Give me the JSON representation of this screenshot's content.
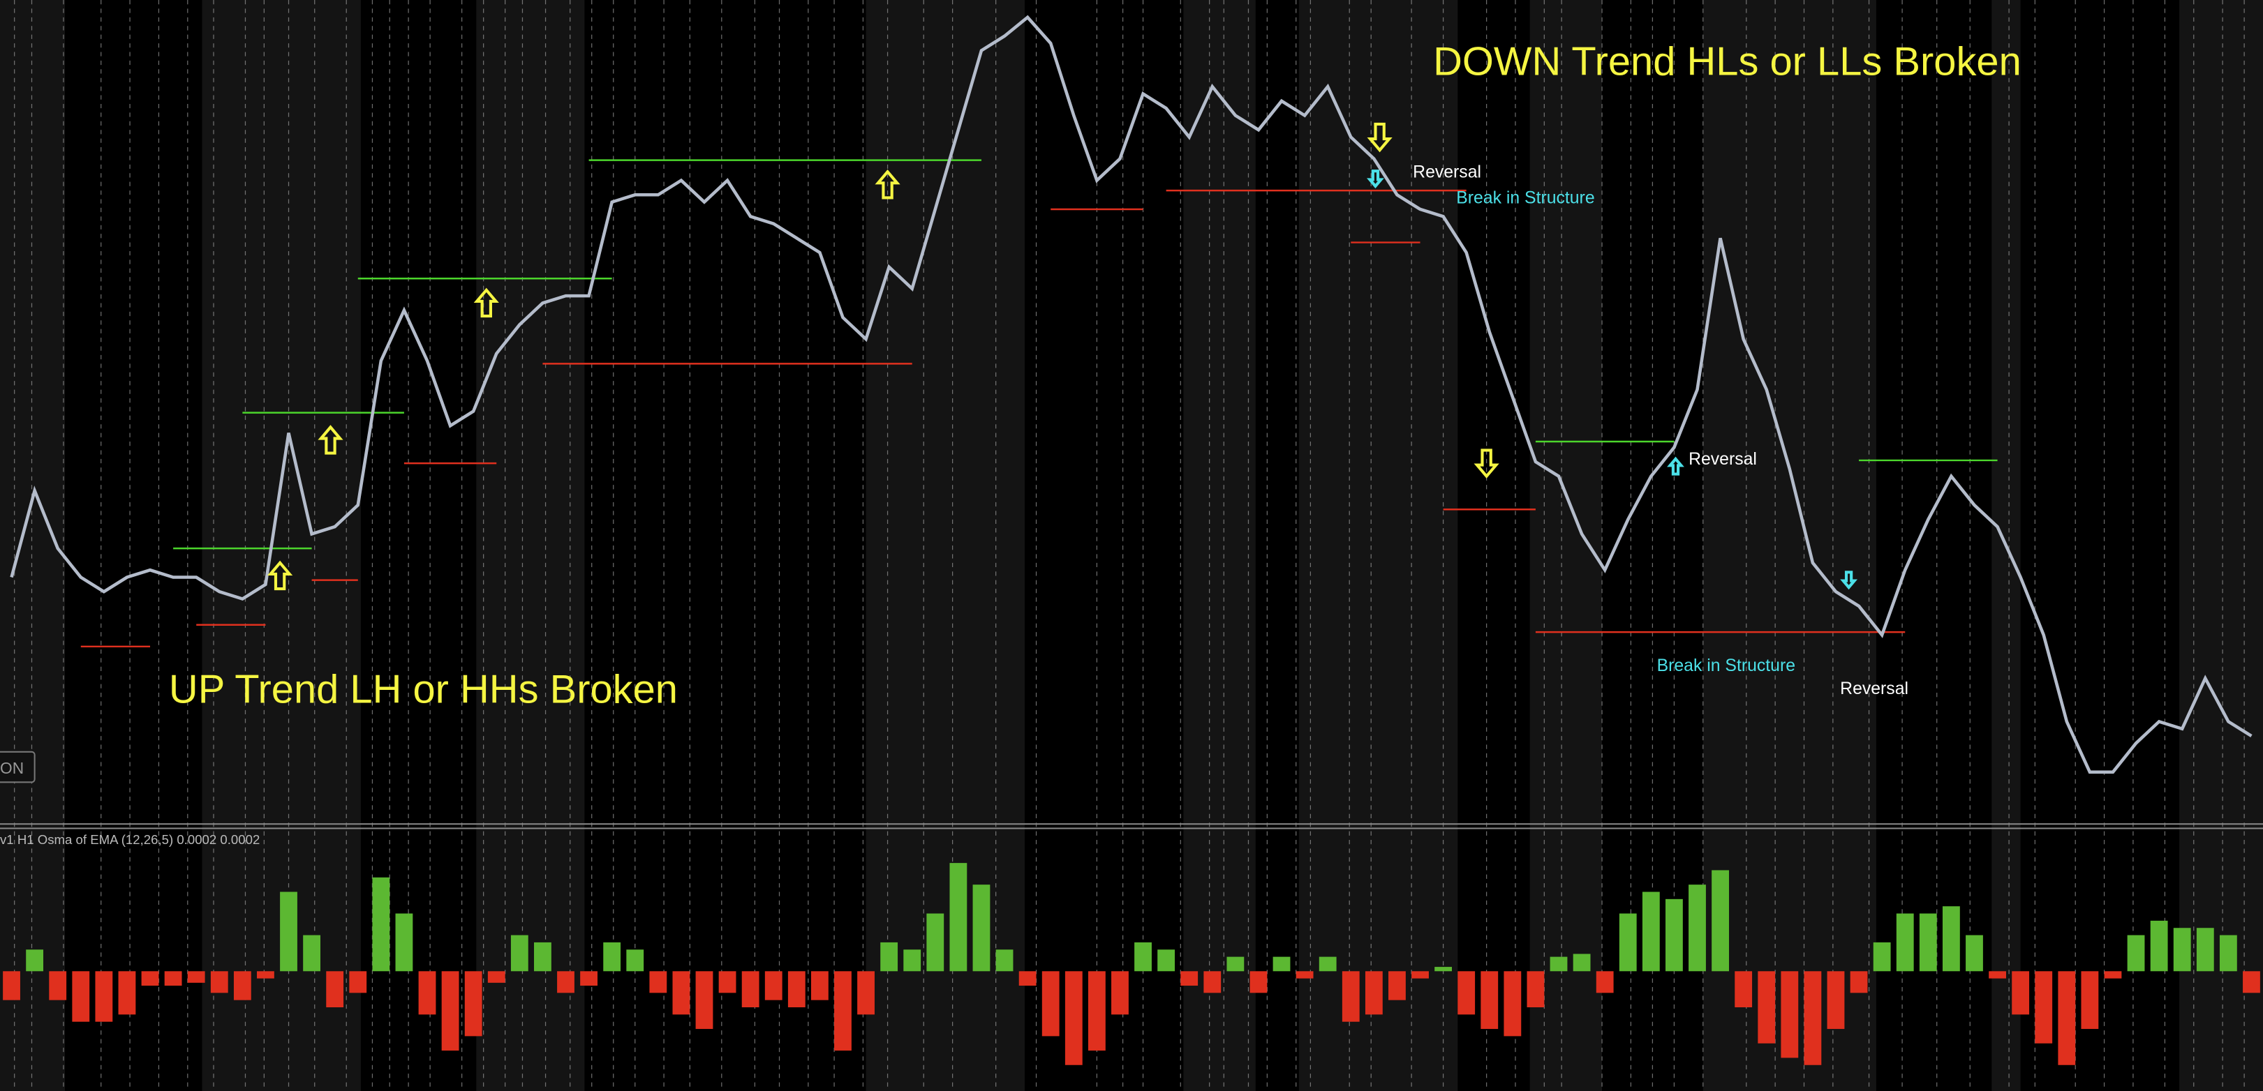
{
  "chart_data": [
    {
      "type": "line",
      "color": "#b4bccb",
      "ylim": [
        0,
        570
      ],
      "values": [
        170,
        230,
        190,
        170,
        160,
        170,
        175,
        170,
        170,
        160,
        155,
        165,
        270,
        200,
        205,
        220,
        320,
        355,
        320,
        275,
        285,
        325,
        345,
        360,
        365,
        365,
        430,
        435,
        435,
        445,
        430,
        445,
        420,
        415,
        405,
        395,
        350,
        335,
        385,
        370,
        425,
        480,
        535,
        545,
        558,
        540,
        490,
        445,
        460,
        505,
        495,
        475,
        510,
        490,
        480,
        500,
        490,
        510,
        475,
        460,
        435,
        425,
        420,
        395,
        340,
        295,
        250,
        240,
        200,
        175,
        210,
        240,
        260,
        300,
        405,
        335,
        300,
        245,
        180,
        160,
        150,
        130,
        175,
        210,
        240,
        220,
        205,
        170,
        130,
        70,
        35,
        35,
        55,
        70,
        65,
        100,
        70,
        60
      ],
      "levels": [
        {
          "value": 190,
          "x": [
            7,
            13
          ],
          "color": "#4cd62c"
        },
        {
          "value": 122,
          "x": [
            3,
            6
          ],
          "color": "#e0301e"
        },
        {
          "value": 137,
          "x": [
            8,
            11
          ],
          "color": "#e0301e"
        },
        {
          "value": 168,
          "x": [
            13,
            15
          ],
          "color": "#e0301e"
        },
        {
          "value": 284,
          "x": [
            10,
            17
          ],
          "color": "#4cd62c"
        },
        {
          "value": 249,
          "x": [
            17,
            21
          ],
          "color": "#e0301e"
        },
        {
          "value": 377,
          "x": [
            15,
            26
          ],
          "color": "#4cd62c"
        },
        {
          "value": 318,
          "x": [
            23,
            39
          ],
          "color": "#e0301e"
        },
        {
          "value": 459,
          "x": [
            25,
            42
          ],
          "color": "#4cd62c"
        },
        {
          "value": 425,
          "x": [
            45,
            49
          ],
          "color": "#e0301e"
        },
        {
          "value": 438,
          "x": [
            50,
            63
          ],
          "color": "#e0301e"
        },
        {
          "value": 402,
          "x": [
            58,
            61
          ],
          "color": "#e0301e"
        },
        {
          "value": 264,
          "x": [
            66,
            72
          ],
          "color": "#4cd62c"
        },
        {
          "value": 217,
          "x": [
            62,
            66
          ],
          "color": "#e0301e"
        },
        {
          "value": 132,
          "x": [
            66,
            82
          ],
          "color": "#e0301e"
        },
        {
          "value": 251,
          "x": [
            80,
            86
          ],
          "color": "#4cd62c"
        }
      ],
      "annotations": [
        "DOWN Trend HLs or LLs Broken",
        "UP Trend LH or HHs Broken",
        "Reversal",
        "Break in Structure",
        "Reversal",
        "Break in Structure",
        "Reversal"
      ]
    },
    {
      "type": "bar",
      "title": "v1 H1 Osma of EMA (12,26,5) 0.0002 0.0002",
      "up_color": "#5cb832",
      "down_color": "#e0301e",
      "ylim": [
        -0.00083,
        0.00098
      ],
      "values": [
        -0.0002,
        0.00015,
        -0.0002,
        -0.00035,
        -0.00035,
        -0.0003,
        -0.0001,
        -0.0001,
        -8e-05,
        -0.00015,
        -0.0002,
        -5e-05,
        0.00055,
        0.00025,
        -0.00025,
        -0.00015,
        0.00065,
        0.0004,
        -0.0003,
        -0.00055,
        -0.00045,
        -8e-05,
        0.00025,
        0.0002,
        -0.00015,
        -0.0001,
        0.0002,
        0.00015,
        -0.00015,
        -0.0003,
        -0.0004,
        -0.00015,
        -0.00025,
        -0.0002,
        -0.00025,
        -0.0002,
        -0.00055,
        -0.0003,
        0.0002,
        0.00015,
        0.0004,
        0.00075,
        0.0006,
        0.00015,
        -0.0001,
        -0.00045,
        -0.00065,
        -0.00055,
        -0.0003,
        0.0002,
        0.00015,
        -0.0001,
        -0.00015,
        0.0001,
        -0.00015,
        0.0001,
        -5e-05,
        0.0001,
        -0.00035,
        -0.0003,
        -0.0002,
        -5e-05,
        3e-05,
        -0.0003,
        -0.0004,
        -0.00045,
        -0.00025,
        0.0001,
        0.00012,
        -0.00015,
        0.0004,
        0.00055,
        0.0005,
        0.0006,
        0.0007,
        -0.00025,
        -0.0005,
        -0.0006,
        -0.00065,
        -0.0004,
        -0.00015,
        0.0002,
        0.0004,
        0.0004,
        0.00045,
        0.00025,
        -5e-05,
        -0.0003,
        -0.0005,
        -0.00065,
        -0.0004,
        -5e-05,
        0.00025,
        0.00035,
        0.0003,
        0.0003,
        0.00025,
        -0.00015
      ]
    }
  ],
  "toolbar": {
    "button": "ON"
  }
}
